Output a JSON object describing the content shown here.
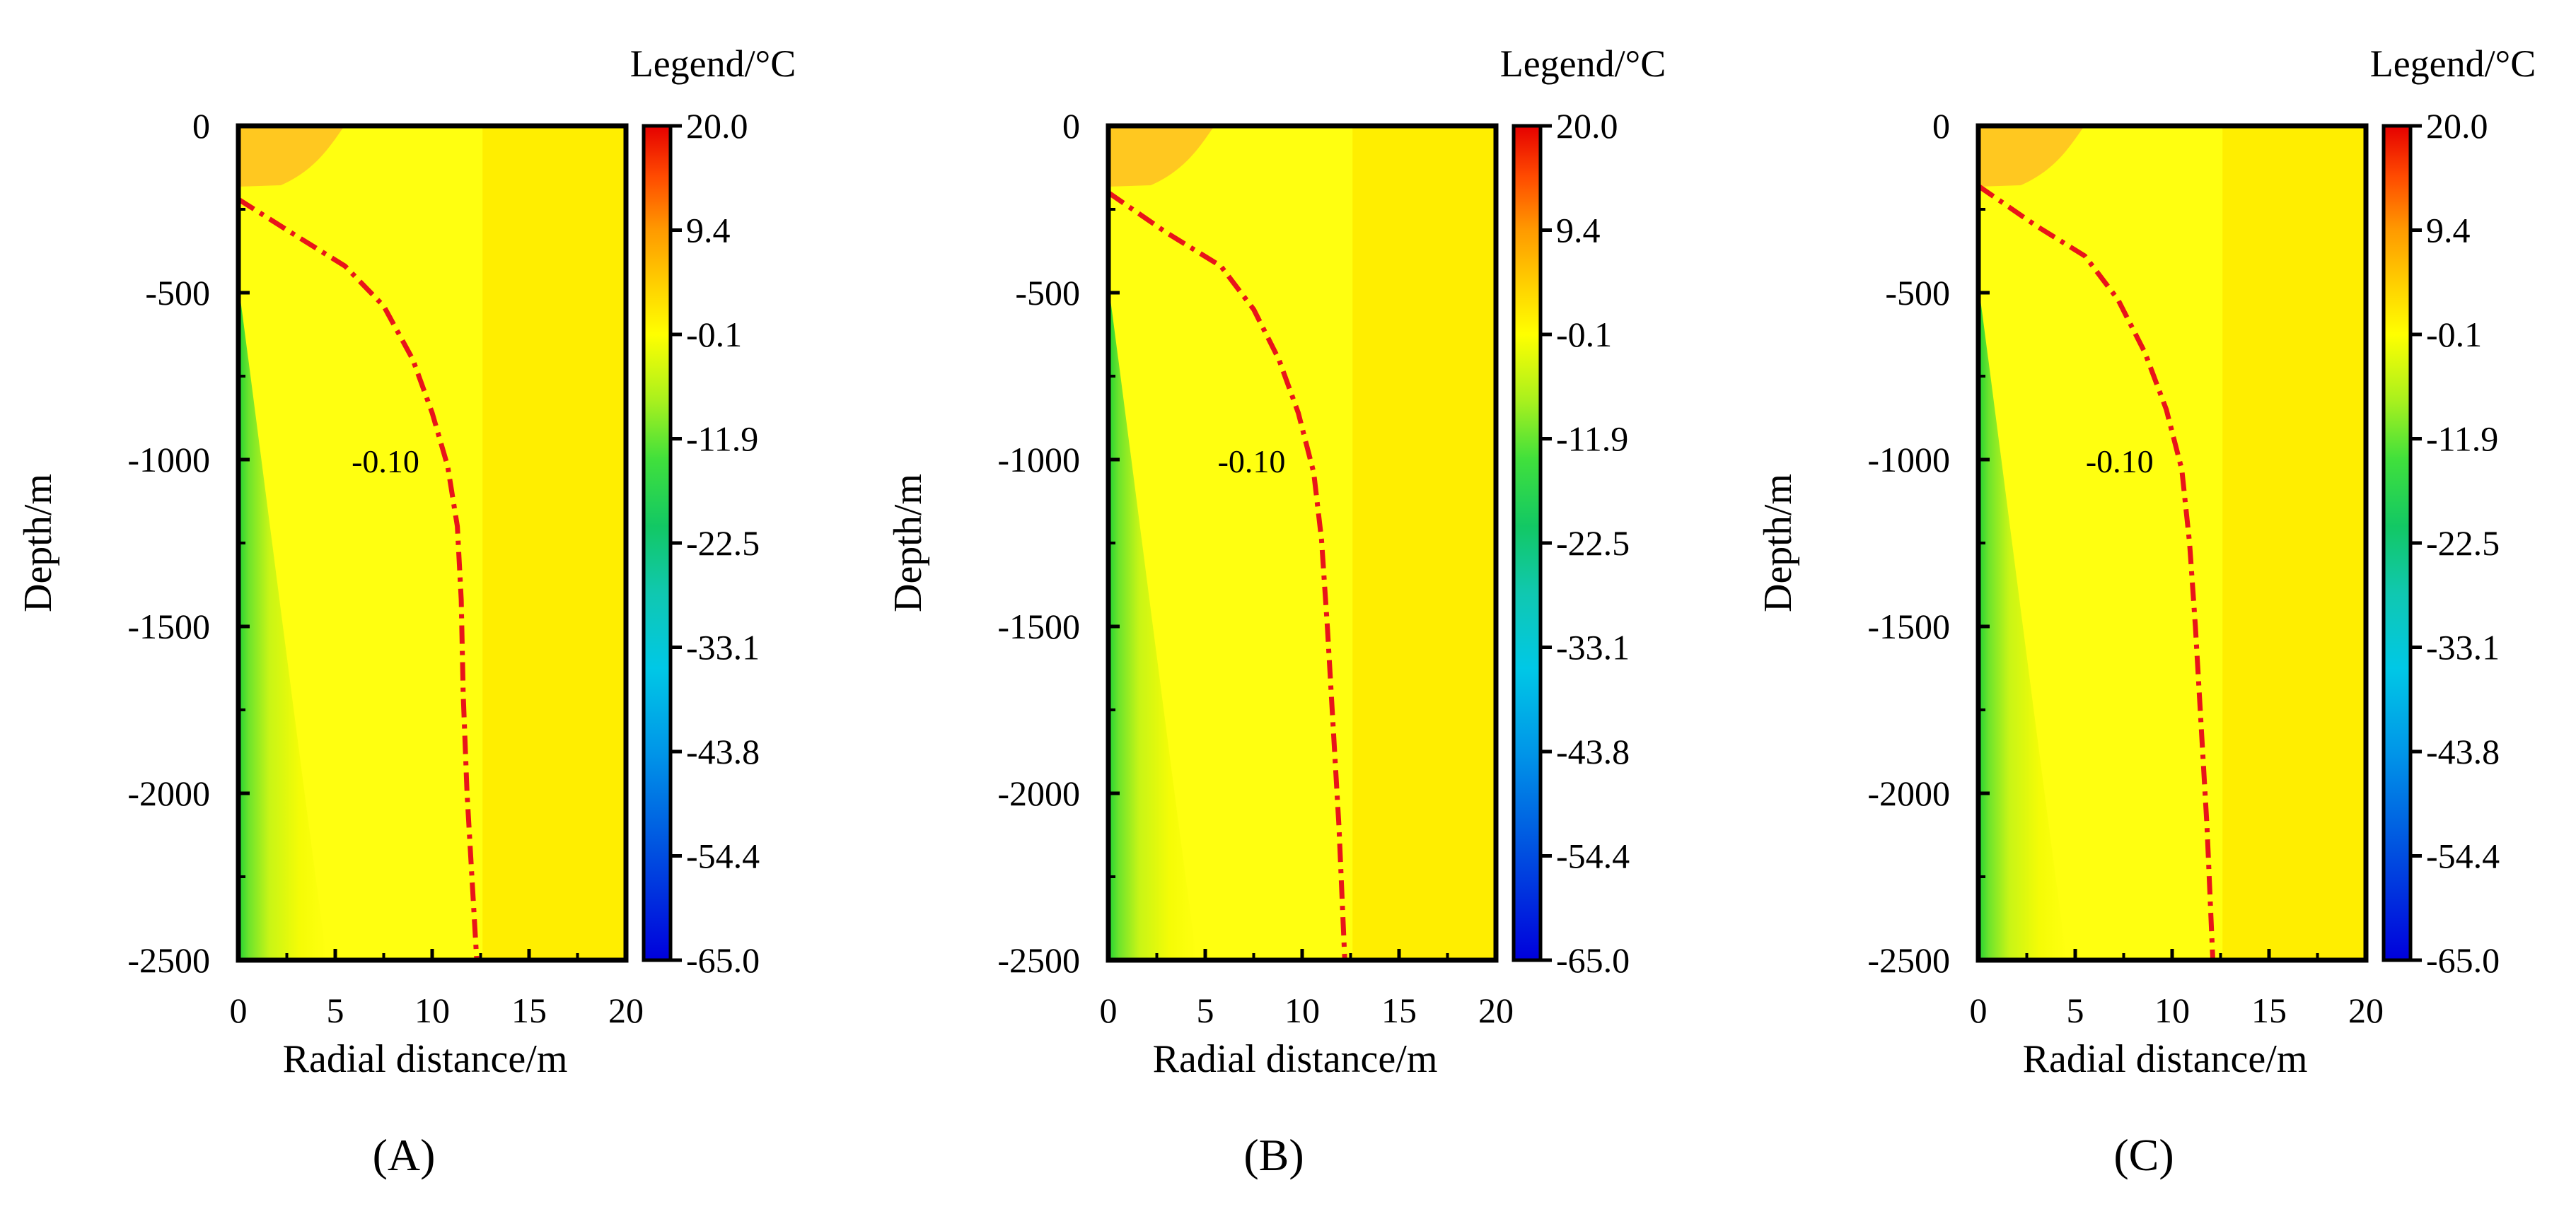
{
  "chart_data": [
    {
      "type": "heatmap",
      "panel_label": "(A)",
      "title": "",
      "xlabel": "Radial distance/m",
      "ylabel": "Depth/m",
      "xlim": [
        0,
        20
      ],
      "ylim": [
        -2500,
        0
      ],
      "x_ticks": [
        "0",
        "5",
        "10",
        "15",
        "20"
      ],
      "y_ticks": [
        "0",
        "-500",
        "-1000",
        "-1500",
        "-2000",
        "-2500"
      ],
      "colorbar": {
        "title": "Legend/°C",
        "range": [
          -65.0,
          20.0
        ],
        "tick_labels": [
          "20.0",
          "9.4",
          "-0.1",
          "-11.9",
          "-22.5",
          "-33.1",
          "-43.8",
          "-54.4",
          "-65.0"
        ]
      },
      "contour": {
        "label": "-0.10",
        "value": -0.1,
        "points": [
          [
            0,
            -220
          ],
          [
            3,
            -330
          ],
          [
            5.5,
            -420
          ],
          [
            7.5,
            -540
          ],
          [
            9,
            -700
          ],
          [
            10,
            -860
          ],
          [
            10.8,
            -1020
          ],
          [
            11.3,
            -1200
          ],
          [
            11.5,
            -1420
          ],
          [
            11.6,
            -1700
          ],
          [
            11.8,
            -2000
          ],
          [
            12.1,
            -2300
          ],
          [
            12.3,
            -2500
          ]
        ]
      }
    },
    {
      "type": "heatmap",
      "panel_label": "(B)",
      "title": "",
      "xlabel": "Radial distance/m",
      "ylabel": "Depth/m",
      "xlim": [
        0,
        20
      ],
      "ylim": [
        -2500,
        0
      ],
      "x_ticks": [
        "0",
        "5",
        "10",
        "15",
        "20"
      ],
      "y_ticks": [
        "0",
        "-500",
        "-1000",
        "-1500",
        "-2000",
        "-2500"
      ],
      "colorbar": {
        "title": "Legend/°C",
        "range": [
          -65.0,
          20.0
        ],
        "tick_labels": [
          "20.0",
          "9.4",
          "-0.1",
          "-11.9",
          "-22.5",
          "-33.1",
          "-43.8",
          "-54.4",
          "-65.0"
        ]
      },
      "contour": {
        "label": "-0.10",
        "value": -0.1,
        "points": [
          [
            0,
            -200
          ],
          [
            3,
            -320
          ],
          [
            5.8,
            -420
          ],
          [
            7.5,
            -550
          ],
          [
            8.8,
            -700
          ],
          [
            9.8,
            -860
          ],
          [
            10.6,
            -1040
          ],
          [
            11,
            -1240
          ],
          [
            11.3,
            -1500
          ],
          [
            11.6,
            -1800
          ],
          [
            11.9,
            -2100
          ],
          [
            12.2,
            -2500
          ]
        ]
      }
    },
    {
      "type": "heatmap",
      "panel_label": "(C)",
      "title": "",
      "xlabel": "Radial distance/m",
      "ylabel": "Depth/m",
      "xlim": [
        0,
        20
      ],
      "ylim": [
        -2500,
        0
      ],
      "x_ticks": [
        "0",
        "5",
        "10",
        "15",
        "20"
      ],
      "y_ticks": [
        "0",
        "-500",
        "-1000",
        "-1500",
        "-2000",
        "-2500"
      ],
      "colorbar": {
        "title": "Legend/°C",
        "range": [
          -65.0,
          20.0
        ],
        "tick_labels": [
          "20.0",
          "9.4",
          "-0.1",
          "-11.9",
          "-22.5",
          "-33.1",
          "-43.8",
          "-54.4",
          "-65.0"
        ]
      },
      "contour": {
        "label": "-0.10",
        "value": -0.1,
        "points": [
          [
            0,
            -180
          ],
          [
            3,
            -300
          ],
          [
            5.5,
            -390
          ],
          [
            7.2,
            -520
          ],
          [
            8.6,
            -680
          ],
          [
            9.7,
            -850
          ],
          [
            10.5,
            -1030
          ],
          [
            10.9,
            -1250
          ],
          [
            11.2,
            -1500
          ],
          [
            11.5,
            -1800
          ],
          [
            11.8,
            -2100
          ],
          [
            12.1,
            -2500
          ]
        ]
      }
    }
  ],
  "colors": {
    "field_main": "#FFEE00",
    "field_inner": "#FFFF10",
    "warm_patch": "#FFC820",
    "contour_line": "#E8141A",
    "frame": "#000000"
  }
}
